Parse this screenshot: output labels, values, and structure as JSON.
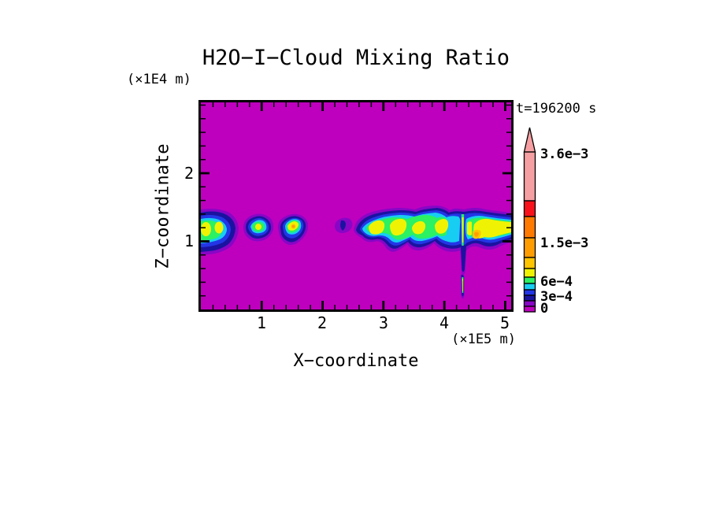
{
  "title": "H2O−I−Cloud Mixing Ratio",
  "annotations": {
    "time_label": "t=196200 s",
    "y_axis_unit": "(×1E4 m)",
    "x_axis_unit": "(×1E5 m)"
  },
  "axes": {
    "x_label": "X−coordinate",
    "y_label": "Z−coordinate",
    "x_tick_labels": [
      "1",
      "2",
      "3",
      "4",
      "5"
    ],
    "y_tick_labels": [
      "2",
      "1"
    ]
  },
  "colorbar": {
    "labels": [
      "3.6e−3",
      "1.5e−3",
      "6e−4",
      "3e−4",
      "0"
    ]
  },
  "palette": {
    "plotbg": "#BE00BE",
    "purple": "#8806C6",
    "navy": "#1A13A0",
    "blue": "#2336E6",
    "cyan": "#17CDF2",
    "green": "#2BF163",
    "yellow": "#EFF303",
    "gold": "#FFC400",
    "orange": "#FF9D00",
    "dkorange": "#FF7A00",
    "red": "#F8131C",
    "salmon": "#F59FA2",
    "frame": "#000000"
  },
  "chart_data": {
    "type": "heatmap",
    "subtype": "filled-contour",
    "title": "H2O−I−Cloud Mixing Ratio",
    "xlabel": "X−coordinate (×1E5 m)",
    "ylabel": "Z−coordinate (×1E4 m)",
    "time_annotation": "t=196200 s",
    "xlim": [
      0,
      5.098
    ],
    "ylim": [
      0,
      3.04
    ],
    "x_major_ticks": [
      1,
      2,
      3,
      4,
      5
    ],
    "y_major_ticks": [
      1,
      2
    ],
    "minor_tick_step": 0.2,
    "grid": false,
    "legend_position": "right-colorbar-with-overflow-arrow",
    "colorbar_labeled_levels": [
      0,
      0.0003,
      0.0006,
      0.0015,
      0.0036
    ],
    "color_bands_low_to_high": [
      {
        "color": "#BE00BE",
        "meaning": "0 (background)"
      },
      {
        "color": "#8806C6",
        "meaning": "lowest nonzero band"
      },
      {
        "color": "#1A13A0",
        "meaning": "below 3e-4"
      },
      {
        "color": "#2336E6",
        "meaning": "~3e-4"
      },
      {
        "color": "#17CDF2",
        "meaning": "3e-4 to 6e-4"
      },
      {
        "color": "#2BF163",
        "meaning": "~6e-4"
      },
      {
        "color": "#EFF303",
        "meaning": "above 6e-4"
      },
      {
        "color": "#FFC400",
        "meaning": "~1e-3"
      },
      {
        "color": "#FF9D00",
        "meaning": "~1.2e-3"
      },
      {
        "color": "#FF7A00",
        "meaning": "~1.5e-3"
      },
      {
        "color": "#F8131C",
        "meaning": "~2.4e-3"
      },
      {
        "color": "#F59FA2",
        "meaning": "up to 3.6e-3"
      },
      {
        "color": "#F59FA2",
        "meaning": "> 3.6e-3 (overflow arrow)"
      }
    ],
    "background_value": 0,
    "features": [
      {
        "name": "cloud-patch-1",
        "x_range": [
          0.0,
          0.58
        ],
        "z_range": [
          0.92,
          1.45
        ],
        "peak_band": "yellow (~1e-3)"
      },
      {
        "name": "cloud-patch-2",
        "x_range": [
          0.69,
          1.2
        ],
        "z_range": [
          1.0,
          1.36
        ],
        "peak_band": "yellow (~8e-4)"
      },
      {
        "name": "cloud-patch-3",
        "x_range": [
          1.25,
          1.77
        ],
        "z_range": [
          0.95,
          1.36
        ],
        "peak_band": "orange spot (~1.4e-3)"
      },
      {
        "name": "faint-wisp",
        "x_range": [
          2.2,
          2.5
        ],
        "z_range": [
          1.1,
          1.32
        ],
        "peak_band": "navy (~2e-4)"
      },
      {
        "name": "main-anvil-band",
        "x_range": [
          2.48,
          5.1
        ],
        "z_range": [
          0.85,
          1.5
        ],
        "peak_band": "orange patches (~1.3e-3)"
      },
      {
        "name": "fall-streak",
        "x_range": [
          4.26,
          4.34
        ],
        "z_range": [
          0.13,
          1.62
        ],
        "peak_band": "orange core (~1.2e-3)"
      }
    ]
  }
}
